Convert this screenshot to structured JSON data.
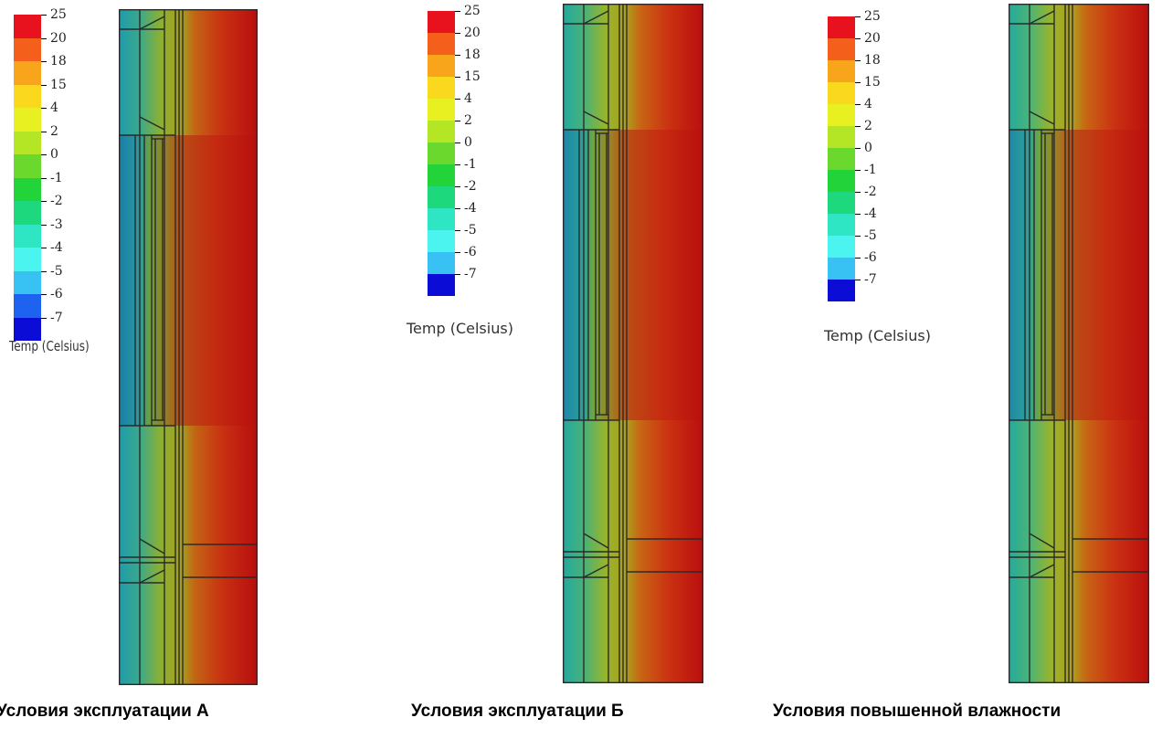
{
  "legend": {
    "title": "Temp (Celsius)",
    "levels": [
      {
        "label": "25",
        "color": "#e8121e"
      },
      {
        "label": "20",
        "color": "#f4601c"
      },
      {
        "label": "18",
        "color": "#f8a51c"
      },
      {
        "label": "15",
        "color": "#fad81e"
      },
      {
        "label": "4",
        "color": "#e8f021"
      },
      {
        "label": "2",
        "color": "#b4e626"
      },
      {
        "label": "0",
        "color": "#6ad82c"
      },
      {
        "label": "-1",
        "color": "#22d43a"
      },
      {
        "label": "-2",
        "color": "#1ed87e"
      },
      {
        "label": "-3",
        "color": "#2ee6c4"
      },
      {
        "label": "-4",
        "color": "#4cf4f0"
      },
      {
        "label": "-5",
        "color": "#38c2f4"
      },
      {
        "label": "-6",
        "color": "#1e62f0"
      },
      {
        "label": "-7",
        "color": "#0b0cd6"
      }
    ],
    "levels_b": [
      {
        "label": "25",
        "color": "#e8121e"
      },
      {
        "label": "20",
        "color": "#f4601c"
      },
      {
        "label": "18",
        "color": "#f8a51c"
      },
      {
        "label": "15",
        "color": "#fad81e"
      },
      {
        "label": "4",
        "color": "#e8f021"
      },
      {
        "label": "2",
        "color": "#b4e626"
      },
      {
        "label": "0",
        "color": "#6ad82c"
      },
      {
        "label": "-1",
        "color": "#22d43a"
      },
      {
        "label": "-2",
        "color": "#1ed87e"
      },
      {
        "label": "-4",
        "color": "#2ee6c4"
      },
      {
        "label": "-5",
        "color": "#4cf4f0"
      },
      {
        "label": "-6",
        "color": "#38c2f4"
      },
      {
        "label": "-7",
        "color": "#0b0cd6"
      }
    ]
  },
  "panels": [
    {
      "caption": "Условия эксплуатации А"
    },
    {
      "caption": "Условия эксплуатации Б"
    },
    {
      "caption": "Условия повышенной влажности"
    }
  ]
}
